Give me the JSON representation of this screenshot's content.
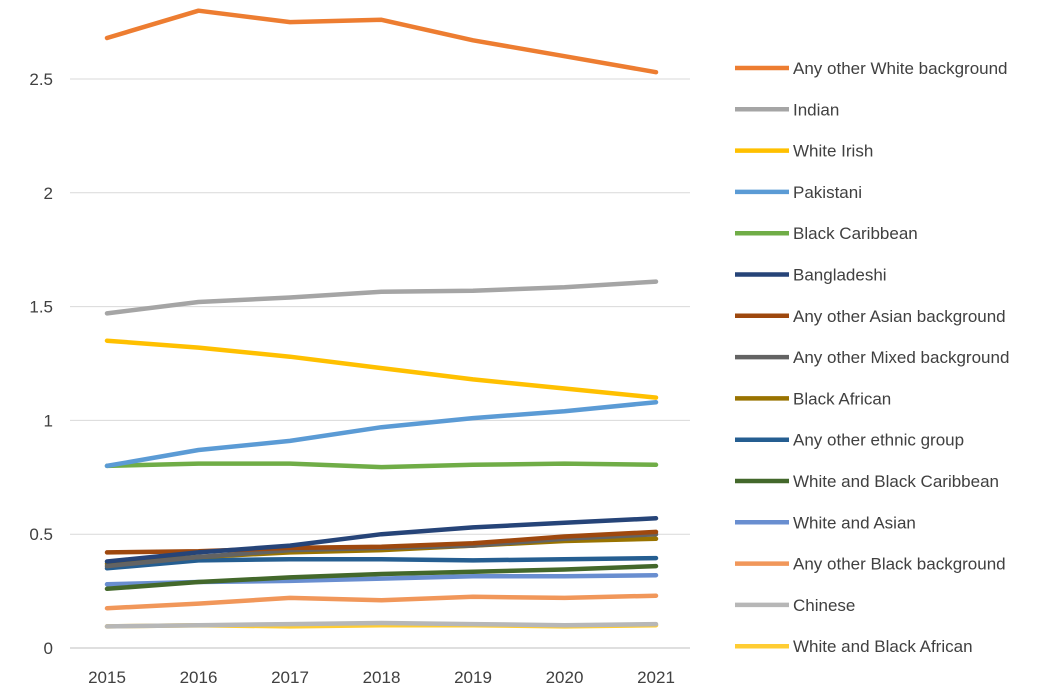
{
  "chart_data": {
    "type": "line",
    "title": "",
    "xlabel": "",
    "ylabel": "",
    "x": [
      "2015",
      "2016",
      "2017",
      "2018",
      "2019",
      "2020",
      "2021"
    ],
    "ylim": [
      0,
      2.8
    ],
    "yticks": [
      0,
      0.5,
      1,
      1.5,
      2,
      2.5
    ],
    "ytick_labels": [
      "0",
      "0.5",
      "1",
      "1.5",
      "2",
      "2.5"
    ],
    "grid": "horizontal",
    "legend_position": "right",
    "series": [
      {
        "name": "Any other White background",
        "color": "#ED7D31",
        "values": [
          2.68,
          2.8,
          2.75,
          2.76,
          2.67,
          2.6,
          2.53
        ]
      },
      {
        "name": "Indian",
        "color": "#A5A5A5",
        "values": [
          1.47,
          1.52,
          1.54,
          1.565,
          1.57,
          1.585,
          1.61
        ]
      },
      {
        "name": "White Irish",
        "color": "#FFC000",
        "values": [
          1.35,
          1.32,
          1.28,
          1.23,
          1.18,
          1.14,
          1.1
        ]
      },
      {
        "name": "Pakistani",
        "color": "#5B9BD5",
        "values": [
          0.8,
          0.87,
          0.91,
          0.97,
          1.01,
          1.04,
          1.08
        ]
      },
      {
        "name": "Black Caribbean",
        "color": "#70AD47",
        "values": [
          0.8,
          0.81,
          0.81,
          0.795,
          0.805,
          0.81,
          0.805
        ]
      },
      {
        "name": "Bangladeshi",
        "color": "#264478",
        "values": [
          0.38,
          0.42,
          0.45,
          0.5,
          0.53,
          0.55,
          0.57
        ]
      },
      {
        "name": "Any other Asian background",
        "color": "#9E480E",
        "values": [
          0.42,
          0.425,
          0.44,
          0.445,
          0.46,
          0.49,
          0.51
        ]
      },
      {
        "name": "Any other Mixed background",
        "color": "#636363",
        "values": [
          0.36,
          0.4,
          0.43,
          0.44,
          0.45,
          0.48,
          0.5
        ]
      },
      {
        "name": "Black African",
        "color": "#997300",
        "values": [
          0.37,
          0.4,
          0.42,
          0.43,
          0.45,
          0.47,
          0.48
        ]
      },
      {
        "name": "Any other ethnic group",
        "color": "#255E91",
        "values": [
          0.35,
          0.385,
          0.39,
          0.39,
          0.385,
          0.39,
          0.395
        ]
      },
      {
        "name": "White and Black Caribbean",
        "color": "#43682B",
        "values": [
          0.26,
          0.29,
          0.31,
          0.325,
          0.335,
          0.345,
          0.36
        ]
      },
      {
        "name": "White and Asian",
        "color": "#698ED0",
        "values": [
          0.28,
          0.29,
          0.295,
          0.305,
          0.315,
          0.315,
          0.32
        ]
      },
      {
        "name": "Any other Black background",
        "color": "#F1975A",
        "values": [
          0.175,
          0.195,
          0.22,
          0.21,
          0.225,
          0.22,
          0.23
        ]
      },
      {
        "name": "Chinese",
        "color": "#B7B7B7",
        "values": [
          0.095,
          0.1,
          0.105,
          0.11,
          0.105,
          0.1,
          0.105
        ]
      },
      {
        "name": "White and Black African",
        "color": "#FFCD33",
        "values": [
          0.095,
          0.1,
          0.095,
          0.1,
          0.1,
          0.095,
          0.1
        ]
      }
    ]
  }
}
